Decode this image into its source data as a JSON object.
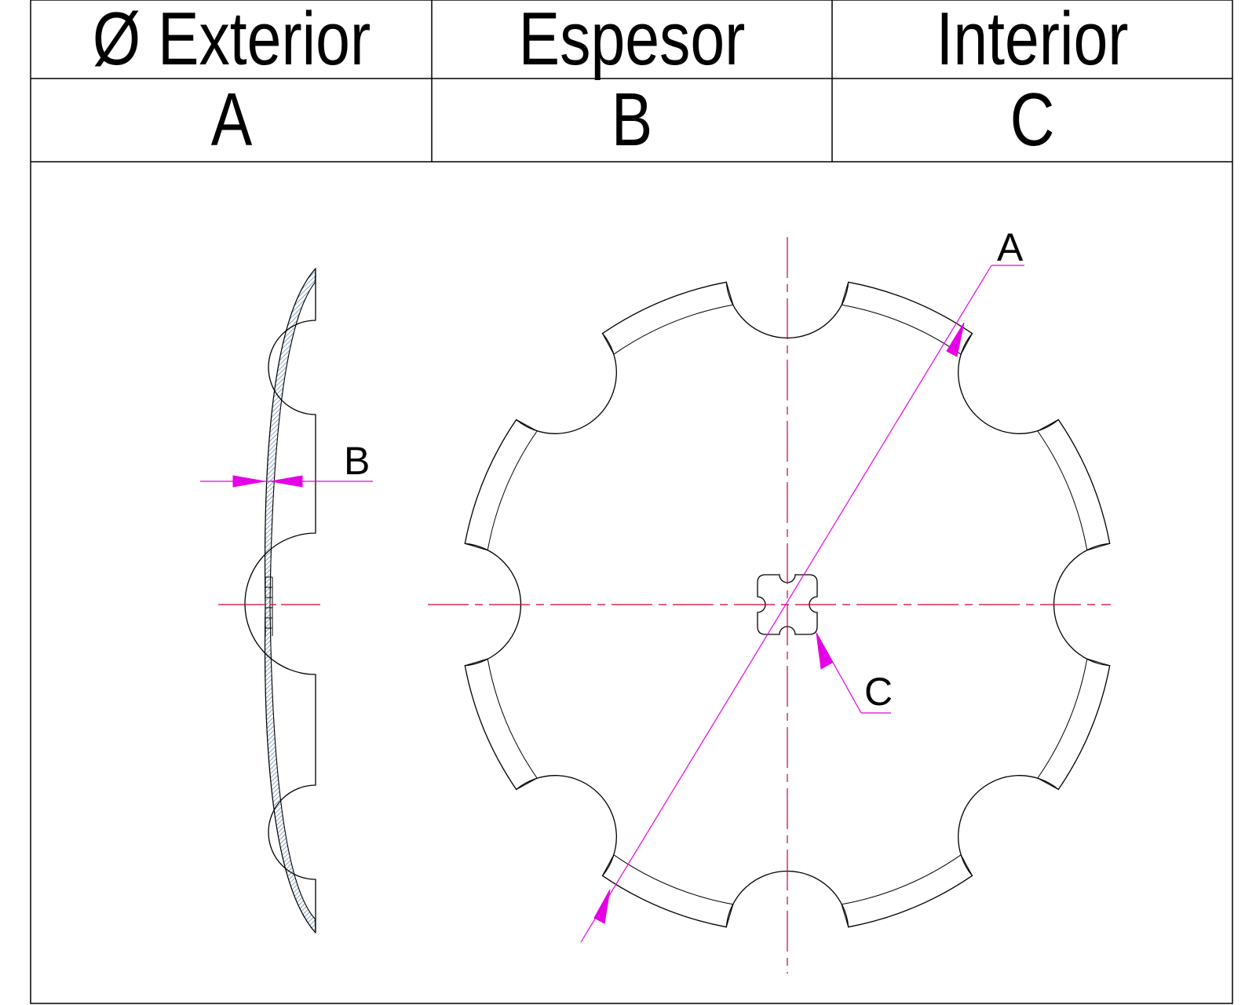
{
  "table": {
    "headers": [
      "Ø Exterior",
      "Espesor",
      "Interior"
    ],
    "letters": [
      "A",
      "B",
      "C"
    ]
  },
  "drawing": {
    "dimension_labels": {
      "outer_diameter": "A",
      "thickness": "B",
      "inner_bore": "C"
    }
  },
  "colors": {
    "outline": "#000000",
    "centerline": "#cc0033",
    "dimension": "#e600e6",
    "hatch": "#5f7f9f"
  }
}
